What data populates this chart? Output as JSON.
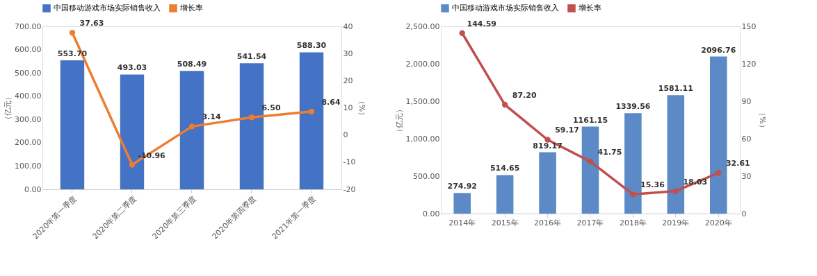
{
  "chart_data": [
    {
      "type": "bar",
      "categories": [
        "2020年第一季度",
        "2020年第二季度",
        "2020年第三季度",
        "2020年第四季度",
        "2021年第一季度"
      ],
      "ylabel": "（亿元）",
      "y2label": "（%）",
      "ylim": [
        0,
        700
      ],
      "yticks": [
        {
          "value": 0,
          "label": "0.00"
        },
        {
          "value": 100,
          "label": "100.00"
        },
        {
          "value": 200,
          "label": "200.00"
        },
        {
          "value": 300,
          "label": "300.00"
        },
        {
          "value": 400,
          "label": "400.00"
        },
        {
          "value": 500,
          "label": "500.00"
        },
        {
          "value": 600,
          "label": "600.00"
        },
        {
          "value": 700,
          "label": "700.00"
        }
      ],
      "y2lim": [
        -20,
        40
      ],
      "y2ticks": [
        -20,
        -10,
        0,
        10,
        20,
        30,
        40
      ],
      "legend": "top",
      "marker": "circle",
      "series": [
        {
          "name": "中国移动游戏市场实际销售收入",
          "color": "#4472c4",
          "values": [
            553.7,
            493.03,
            508.49,
            541.54,
            588.3
          ],
          "value_labels": [
            "553.70",
            "493.03",
            "508.49",
            "541.54",
            "588.30"
          ]
        },
        {
          "name": "增长率",
          "type": "line",
          "axis": "y2",
          "color": "#ed7d31",
          "values": [
            37.63,
            -10.96,
            3.14,
            6.5,
            8.64
          ],
          "value_labels": [
            "37.63",
            "-10.96",
            "3.14",
            "6.50",
            "8.64"
          ]
        }
      ]
    },
    {
      "type": "bar",
      "categories": [
        "2014年",
        "2015年",
        "2016年",
        "2017年",
        "2018年",
        "2019年",
        "2020年"
      ],
      "ylabel": "（亿元）",
      "y2label": "（%）",
      "ylim": [
        0,
        2500
      ],
      "yticks": [
        {
          "value": 0,
          "label": "0.00"
        },
        {
          "value": 500,
          "label": "500.00"
        },
        {
          "value": 1000,
          "label": "1,000.00"
        },
        {
          "value": 1500,
          "label": "1,500.00"
        },
        {
          "value": 2000,
          "label": "2,000.00"
        },
        {
          "value": 2500,
          "label": "2,500.00"
        }
      ],
      "y2lim": [
        0,
        150
      ],
      "y2ticks": [
        0,
        30,
        60,
        90,
        120,
        150
      ],
      "legend": "top",
      "marker": "circle",
      "series": [
        {
          "name": "中国移动游戏市场实际销售收入",
          "color": "#5b8ac6",
          "values": [
            274.92,
            514.65,
            819.17,
            1161.15,
            1339.56,
            1581.11,
            2096.76
          ],
          "value_labels": [
            "274.92",
            "514.65",
            "819.17",
            "1161.15",
            "1339.56",
            "1581.11",
            "2096.76"
          ]
        },
        {
          "name": "增长率",
          "type": "line",
          "axis": "y2",
          "color": "#c0504d",
          "values": [
            144.59,
            87.2,
            59.17,
            41.75,
            15.36,
            18.03,
            32.61
          ],
          "value_labels": [
            "144.59",
            "87.20",
            "59.17",
            "41.75",
            "15.36",
            "18.03",
            "32.61"
          ]
        }
      ]
    }
  ]
}
